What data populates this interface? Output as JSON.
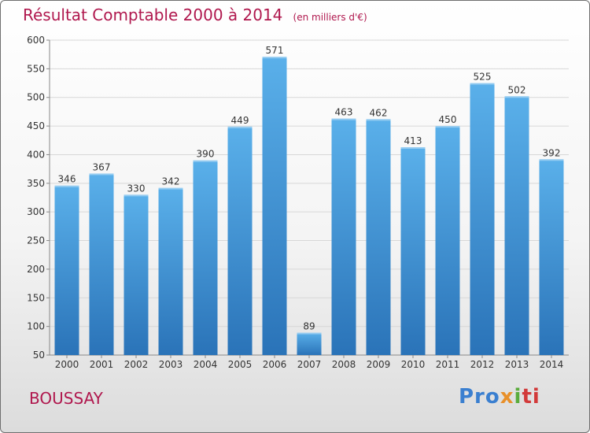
{
  "chart_data": {
    "type": "bar",
    "title": "Résultat Comptable 2000 à 2014",
    "subtitle": "(en milliers d'€)",
    "categories": [
      "2000",
      "2001",
      "2002",
      "2003",
      "2004",
      "2005",
      "2006",
      "2007",
      "2008",
      "2009",
      "2010",
      "2011",
      "2012",
      "2013",
      "2014"
    ],
    "values": [
      346,
      367,
      330,
      342,
      390,
      449,
      571,
      89,
      463,
      462,
      413,
      450,
      525,
      502,
      392
    ],
    "xlabel": "",
    "ylabel": "",
    "ylim": [
      50,
      600
    ],
    "yticks": [
      50,
      100,
      150,
      200,
      250,
      300,
      350,
      400,
      450,
      500,
      550,
      600
    ],
    "grid": true,
    "bar_color": "#3b8fd6",
    "bar_color_light": "#5ab0ea",
    "bar_color_dark": "#2a73b8"
  },
  "footer": {
    "town": "BOUSSAY",
    "logo_parts": [
      "Pro",
      "x",
      "i",
      "ti"
    ]
  },
  "colors": {
    "title": "#b0184e",
    "grid": "#d8d8d8",
    "axis": "#888888"
  }
}
